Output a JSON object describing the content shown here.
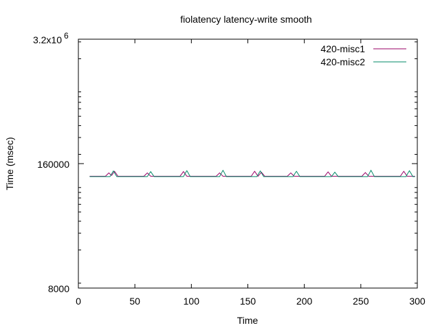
{
  "chart_data": {
    "type": "line",
    "title": "fiolatency latency-write smooth",
    "xlabel": "Time",
    "ylabel": "Time (msec)",
    "xlim": [
      0,
      300
    ],
    "ylim": [
      8000,
      3200000
    ],
    "yscale": "log",
    "xticks": [
      0,
      50,
      100,
      150,
      200,
      250,
      300
    ],
    "xtick_labels": [
      "0",
      "50",
      "100",
      "150",
      "200",
      "250",
      "300"
    ],
    "yticks": [
      8000,
      160000,
      3200000
    ],
    "ytick_labels": [
      "8000",
      "160000",
      "3.2x10^6"
    ],
    "grid": false,
    "legend": "top-right",
    "series": [
      {
        "name": "420-misc1",
        "color": "#990066",
        "baseline": 118000,
        "bumps": [
          {
            "x": 27,
            "peak": 128000
          },
          {
            "x": 32,
            "peak": 133000
          },
          {
            "x": 61,
            "peak": 128000
          },
          {
            "x": 93,
            "peak": 132000
          },
          {
            "x": 125,
            "peak": 128000
          },
          {
            "x": 156,
            "peak": 133000
          },
          {
            "x": 162,
            "peak": 130000
          },
          {
            "x": 188,
            "peak": 128000
          },
          {
            "x": 221,
            "peak": 131000
          },
          {
            "x": 254,
            "peak": 129000
          },
          {
            "x": 288,
            "peak": 133000
          }
        ]
      },
      {
        "name": "420-misc2",
        "color": "#008866",
        "baseline": 117000,
        "bumps": [
          {
            "x": 31,
            "peak": 134000
          },
          {
            "x": 64,
            "peak": 132000
          },
          {
            "x": 96,
            "peak": 135000
          },
          {
            "x": 128,
            "peak": 136000
          },
          {
            "x": 161,
            "peak": 134000
          },
          {
            "x": 193,
            "peak": 133000
          },
          {
            "x": 227,
            "peak": 130000
          },
          {
            "x": 259,
            "peak": 136000
          },
          {
            "x": 293,
            "peak": 135000
          }
        ]
      }
    ]
  }
}
